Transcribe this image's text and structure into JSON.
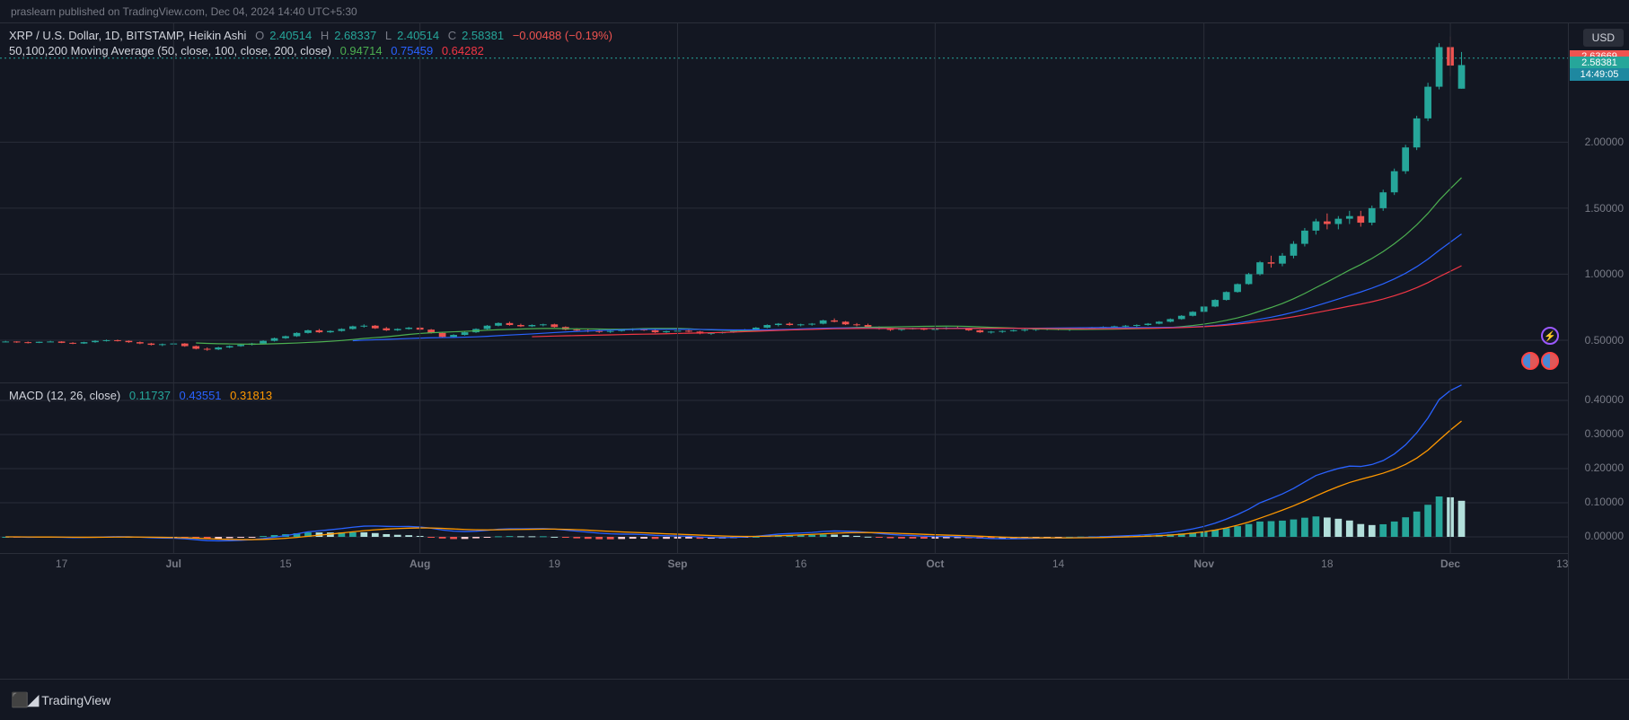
{
  "published_line": "praslearn published on TradingView.com, Dec 04, 2024 14:40 UTC+5:30",
  "footer_brand": "TradingView",
  "currency_button": "USD",
  "main_legend": {
    "symbol": "XRP / U.S. Dollar, 1D, BITSTAMP, Heikin Ashi",
    "o_label": "O",
    "o": "2.40514",
    "h_label": "H",
    "h": "2.68337",
    "l_label": "L",
    "l": "2.40514",
    "c_label": "C",
    "c": "2.58381",
    "change": "−0.00488 (−0.19%)",
    "ohlc_color": "#26a69a",
    "change_color": "#ef5350"
  },
  "ma_legend": {
    "name": "50,100,200 Moving Average (50, close, 100, close, 200, close)",
    "v1": "0.94714",
    "c1": "#4caf50",
    "v2": "0.75459",
    "c2": "#2962ff",
    "v3": "0.64282",
    "c3": "#f23645"
  },
  "macd_legend": {
    "name": "MACD (12, 26, close)",
    "v1": "0.11737",
    "c1": "#26a69a",
    "v2": "0.43551",
    "c2": "#2962ff",
    "v3": "0.31813",
    "c3": "#ff9800"
  },
  "price_axis": {
    "min": 0.18,
    "max": 2.9,
    "ticks": [
      {
        "v": 0.5,
        "label": "0.50000"
      },
      {
        "v": 1.0,
        "label": "1.00000"
      },
      {
        "v": 1.5,
        "label": "1.50000"
      },
      {
        "v": 2.0,
        "label": "2.00000"
      }
    ],
    "tags": [
      {
        "v": 2.63669,
        "label": "2.63669",
        "bg": "#ef5350",
        "fg": "#fff"
      },
      {
        "v": 2.58381,
        "label": "2.58381",
        "bg": "#26a69a",
        "fg": "#fff"
      },
      {
        "v": 2.5,
        "label": "14:49:05",
        "bg": "#1e88a0",
        "fg": "#fff"
      }
    ],
    "dashed_line_value": 2.63669,
    "dashed_color": "#26a69a"
  },
  "macd_axis": {
    "min": -0.05,
    "max": 0.45,
    "ticks": [
      {
        "v": 0.0,
        "label": "0.00000"
      },
      {
        "v": 0.1,
        "label": "0.10000"
      },
      {
        "v": 0.2,
        "label": "0.20000"
      },
      {
        "v": 0.3,
        "label": "0.30000"
      },
      {
        "v": 0.4,
        "label": "0.40000"
      }
    ]
  },
  "time_axis": {
    "n_bars": 140,
    "labels": [
      {
        "i": 5,
        "label": "17"
      },
      {
        "i": 15,
        "label": "Jul"
      },
      {
        "i": 25,
        "label": "15"
      },
      {
        "i": 37,
        "label": "Aug"
      },
      {
        "i": 49,
        "label": "19"
      },
      {
        "i": 60,
        "label": "Sep"
      },
      {
        "i": 71,
        "label": "16"
      },
      {
        "i": 83,
        "label": "Oct"
      },
      {
        "i": 94,
        "label": "14"
      },
      {
        "i": 107,
        "label": "Nov"
      },
      {
        "i": 118,
        "label": "18"
      },
      {
        "i": 129,
        "label": "Dec"
      },
      {
        "i": 139,
        "label": "13"
      }
    ]
  },
  "colors": {
    "up": "#26a69a",
    "down": "#ef5350",
    "ma50": "#4caf50",
    "ma100": "#2962ff",
    "ma200": "#f23645",
    "macd_line": "#2962ff",
    "signal_line": "#ff9800",
    "hist_pos_strong": "#26a69a",
    "hist_pos_weak": "#b2dfdb",
    "hist_neg_strong": "#ef5350",
    "hist_neg_weak": "#ffcdd2",
    "grid": "#2a2e39"
  },
  "candles": [
    {
      "o": 0.49,
      "h": 0.495,
      "l": 0.485,
      "c": 0.49,
      "d": 1
    },
    {
      "o": 0.49,
      "h": 0.492,
      "l": 0.48,
      "c": 0.485,
      "d": -1
    },
    {
      "o": 0.485,
      "h": 0.49,
      "l": 0.475,
      "c": 0.48,
      "d": -1
    },
    {
      "o": 0.48,
      "h": 0.49,
      "l": 0.478,
      "c": 0.488,
      "d": 1
    },
    {
      "o": 0.488,
      "h": 0.495,
      "l": 0.485,
      "c": 0.49,
      "d": 1
    },
    {
      "o": 0.49,
      "h": 0.492,
      "l": 0.478,
      "c": 0.48,
      "d": -1
    },
    {
      "o": 0.48,
      "h": 0.485,
      "l": 0.47,
      "c": 0.475,
      "d": -1
    },
    {
      "o": 0.475,
      "h": 0.488,
      "l": 0.472,
      "c": 0.485,
      "d": 1
    },
    {
      "o": 0.485,
      "h": 0.5,
      "l": 0.48,
      "c": 0.495,
      "d": 1
    },
    {
      "o": 0.495,
      "h": 0.505,
      "l": 0.49,
      "c": 0.5,
      "d": 1
    },
    {
      "o": 0.5,
      "h": 0.505,
      "l": 0.49,
      "c": 0.495,
      "d": -1
    },
    {
      "o": 0.495,
      "h": 0.498,
      "l": 0.48,
      "c": 0.485,
      "d": -1
    },
    {
      "o": 0.485,
      "h": 0.49,
      "l": 0.47,
      "c": 0.475,
      "d": -1
    },
    {
      "o": 0.475,
      "h": 0.48,
      "l": 0.46,
      "c": 0.465,
      "d": -1
    },
    {
      "o": 0.465,
      "h": 0.475,
      "l": 0.455,
      "c": 0.47,
      "d": 1
    },
    {
      "o": 0.47,
      "h": 0.48,
      "l": 0.465,
      "c": 0.475,
      "d": 1
    },
    {
      "o": 0.475,
      "h": 0.478,
      "l": 0.45,
      "c": 0.455,
      "d": -1
    },
    {
      "o": 0.455,
      "h": 0.46,
      "l": 0.43,
      "c": 0.435,
      "d": -1
    },
    {
      "o": 0.435,
      "h": 0.445,
      "l": 0.42,
      "c": 0.43,
      "d": -1
    },
    {
      "o": 0.43,
      "h": 0.45,
      "l": 0.425,
      "c": 0.445,
      "d": 1
    },
    {
      "o": 0.445,
      "h": 0.46,
      "l": 0.44,
      "c": 0.455,
      "d": 1
    },
    {
      "o": 0.455,
      "h": 0.47,
      "l": 0.45,
      "c": 0.465,
      "d": 1
    },
    {
      "o": 0.465,
      "h": 0.48,
      "l": 0.46,
      "c": 0.475,
      "d": 1
    },
    {
      "o": 0.475,
      "h": 0.5,
      "l": 0.47,
      "c": 0.495,
      "d": 1
    },
    {
      "o": 0.495,
      "h": 0.52,
      "l": 0.49,
      "c": 0.515,
      "d": 1
    },
    {
      "o": 0.515,
      "h": 0.535,
      "l": 0.51,
      "c": 0.53,
      "d": 1
    },
    {
      "o": 0.53,
      "h": 0.56,
      "l": 0.525,
      "c": 0.555,
      "d": 1
    },
    {
      "o": 0.555,
      "h": 0.58,
      "l": 0.55,
      "c": 0.575,
      "d": 1
    },
    {
      "o": 0.575,
      "h": 0.585,
      "l": 0.555,
      "c": 0.56,
      "d": -1
    },
    {
      "o": 0.56,
      "h": 0.575,
      "l": 0.555,
      "c": 0.57,
      "d": 1
    },
    {
      "o": 0.57,
      "h": 0.59,
      "l": 0.565,
      "c": 0.585,
      "d": 1
    },
    {
      "o": 0.585,
      "h": 0.61,
      "l": 0.58,
      "c": 0.605,
      "d": 1
    },
    {
      "o": 0.605,
      "h": 0.62,
      "l": 0.595,
      "c": 0.61,
      "d": 1
    },
    {
      "o": 0.61,
      "h": 0.615,
      "l": 0.585,
      "c": 0.59,
      "d": -1
    },
    {
      "o": 0.59,
      "h": 0.6,
      "l": 0.57,
      "c": 0.575,
      "d": -1
    },
    {
      "o": 0.575,
      "h": 0.59,
      "l": 0.57,
      "c": 0.585,
      "d": 1
    },
    {
      "o": 0.585,
      "h": 0.6,
      "l": 0.58,
      "c": 0.595,
      "d": 1
    },
    {
      "o": 0.595,
      "h": 0.605,
      "l": 0.575,
      "c": 0.58,
      "d": -1
    },
    {
      "o": 0.58,
      "h": 0.585,
      "l": 0.55,
      "c": 0.555,
      "d": -1
    },
    {
      "o": 0.555,
      "h": 0.56,
      "l": 0.52,
      "c": 0.525,
      "d": -1
    },
    {
      "o": 0.525,
      "h": 0.545,
      "l": 0.52,
      "c": 0.54,
      "d": 1
    },
    {
      "o": 0.54,
      "h": 0.565,
      "l": 0.535,
      "c": 0.56,
      "d": 1
    },
    {
      "o": 0.56,
      "h": 0.59,
      "l": 0.555,
      "c": 0.585,
      "d": 1
    },
    {
      "o": 0.585,
      "h": 0.615,
      "l": 0.58,
      "c": 0.61,
      "d": 1
    },
    {
      "o": 0.61,
      "h": 0.635,
      "l": 0.605,
      "c": 0.63,
      "d": 1
    },
    {
      "o": 0.63,
      "h": 0.64,
      "l": 0.61,
      "c": 0.615,
      "d": -1
    },
    {
      "o": 0.615,
      "h": 0.625,
      "l": 0.6,
      "c": 0.605,
      "d": -1
    },
    {
      "o": 0.605,
      "h": 0.62,
      "l": 0.6,
      "c": 0.615,
      "d": 1
    },
    {
      "o": 0.615,
      "h": 0.625,
      "l": 0.605,
      "c": 0.62,
      "d": 1
    },
    {
      "o": 0.62,
      "h": 0.625,
      "l": 0.595,
      "c": 0.6,
      "d": -1
    },
    {
      "o": 0.6,
      "h": 0.605,
      "l": 0.575,
      "c": 0.58,
      "d": -1
    },
    {
      "o": 0.58,
      "h": 0.59,
      "l": 0.565,
      "c": 0.575,
      "d": -1
    },
    {
      "o": 0.575,
      "h": 0.585,
      "l": 0.56,
      "c": 0.57,
      "d": -1
    },
    {
      "o": 0.57,
      "h": 0.58,
      "l": 0.555,
      "c": 0.565,
      "d": -1
    },
    {
      "o": 0.565,
      "h": 0.575,
      "l": 0.555,
      "c": 0.57,
      "d": 1
    },
    {
      "o": 0.57,
      "h": 0.585,
      "l": 0.565,
      "c": 0.58,
      "d": 1
    },
    {
      "o": 0.58,
      "h": 0.59,
      "l": 0.57,
      "c": 0.585,
      "d": 1
    },
    {
      "o": 0.585,
      "h": 0.59,
      "l": 0.57,
      "c": 0.575,
      "d": -1
    },
    {
      "o": 0.575,
      "h": 0.58,
      "l": 0.555,
      "c": 0.56,
      "d": -1
    },
    {
      "o": 0.56,
      "h": 0.572,
      "l": 0.555,
      "c": 0.568,
      "d": 1
    },
    {
      "o": 0.568,
      "h": 0.578,
      "l": 0.56,
      "c": 0.572,
      "d": 1
    },
    {
      "o": 0.572,
      "h": 0.578,
      "l": 0.56,
      "c": 0.565,
      "d": -1
    },
    {
      "o": 0.565,
      "h": 0.57,
      "l": 0.545,
      "c": 0.55,
      "d": -1
    },
    {
      "o": 0.55,
      "h": 0.56,
      "l": 0.54,
      "c": 0.555,
      "d": 1
    },
    {
      "o": 0.555,
      "h": 0.565,
      "l": 0.55,
      "c": 0.56,
      "d": 1
    },
    {
      "o": 0.56,
      "h": 0.575,
      "l": 0.555,
      "c": 0.57,
      "d": 1
    },
    {
      "o": 0.57,
      "h": 0.585,
      "l": 0.565,
      "c": 0.58,
      "d": 1
    },
    {
      "o": 0.58,
      "h": 0.6,
      "l": 0.575,
      "c": 0.595,
      "d": 1
    },
    {
      "o": 0.595,
      "h": 0.62,
      "l": 0.59,
      "c": 0.615,
      "d": 1
    },
    {
      "o": 0.615,
      "h": 0.63,
      "l": 0.605,
      "c": 0.625,
      "d": 1
    },
    {
      "o": 0.625,
      "h": 0.635,
      "l": 0.61,
      "c": 0.615,
      "d": -1
    },
    {
      "o": 0.615,
      "h": 0.625,
      "l": 0.605,
      "c": 0.62,
      "d": 1
    },
    {
      "o": 0.62,
      "h": 0.63,
      "l": 0.61,
      "c": 0.625,
      "d": 1
    },
    {
      "o": 0.625,
      "h": 0.655,
      "l": 0.62,
      "c": 0.65,
      "d": 1
    },
    {
      "o": 0.65,
      "h": 0.665,
      "l": 0.635,
      "c": 0.64,
      "d": -1
    },
    {
      "o": 0.64,
      "h": 0.645,
      "l": 0.615,
      "c": 0.62,
      "d": -1
    },
    {
      "o": 0.62,
      "h": 0.63,
      "l": 0.605,
      "c": 0.615,
      "d": -1
    },
    {
      "o": 0.615,
      "h": 0.625,
      "l": 0.595,
      "c": 0.6,
      "d": -1
    },
    {
      "o": 0.6,
      "h": 0.605,
      "l": 0.58,
      "c": 0.585,
      "d": -1
    },
    {
      "o": 0.585,
      "h": 0.595,
      "l": 0.57,
      "c": 0.58,
      "d": -1
    },
    {
      "o": 0.58,
      "h": 0.59,
      "l": 0.57,
      "c": 0.585,
      "d": 1
    },
    {
      "o": 0.585,
      "h": 0.595,
      "l": 0.58,
      "c": 0.59,
      "d": 1
    },
    {
      "o": 0.59,
      "h": 0.595,
      "l": 0.575,
      "c": 0.58,
      "d": -1
    },
    {
      "o": 0.58,
      "h": 0.59,
      "l": 0.57,
      "c": 0.585,
      "d": 1
    },
    {
      "o": 0.585,
      "h": 0.6,
      "l": 0.58,
      "c": 0.595,
      "d": 1
    },
    {
      "o": 0.595,
      "h": 0.605,
      "l": 0.585,
      "c": 0.59,
      "d": -1
    },
    {
      "o": 0.59,
      "h": 0.595,
      "l": 0.57,
      "c": 0.575,
      "d": -1
    },
    {
      "o": 0.575,
      "h": 0.58,
      "l": 0.555,
      "c": 0.56,
      "d": -1
    },
    {
      "o": 0.56,
      "h": 0.57,
      "l": 0.55,
      "c": 0.565,
      "d": 1
    },
    {
      "o": 0.565,
      "h": 0.575,
      "l": 0.555,
      "c": 0.57,
      "d": 1
    },
    {
      "o": 0.57,
      "h": 0.58,
      "l": 0.565,
      "c": 0.575,
      "d": 1
    },
    {
      "o": 0.575,
      "h": 0.585,
      "l": 0.565,
      "c": 0.58,
      "d": 1
    },
    {
      "o": 0.58,
      "h": 0.59,
      "l": 0.57,
      "c": 0.585,
      "d": 1
    },
    {
      "o": 0.585,
      "h": 0.595,
      "l": 0.575,
      "c": 0.59,
      "d": 1
    },
    {
      "o": 0.59,
      "h": 0.595,
      "l": 0.575,
      "c": 0.58,
      "d": -1
    },
    {
      "o": 0.58,
      "h": 0.59,
      "l": 0.57,
      "c": 0.585,
      "d": 1
    },
    {
      "o": 0.585,
      "h": 0.595,
      "l": 0.58,
      "c": 0.59,
      "d": 1
    },
    {
      "o": 0.59,
      "h": 0.6,
      "l": 0.585,
      "c": 0.595,
      "d": 1
    },
    {
      "o": 0.595,
      "h": 0.605,
      "l": 0.59,
      "c": 0.6,
      "d": 1
    },
    {
      "o": 0.6,
      "h": 0.61,
      "l": 0.595,
      "c": 0.605,
      "d": 1
    },
    {
      "o": 0.605,
      "h": 0.615,
      "l": 0.595,
      "c": 0.61,
      "d": 1
    },
    {
      "o": 0.61,
      "h": 0.62,
      "l": 0.6,
      "c": 0.615,
      "d": 1
    },
    {
      "o": 0.615,
      "h": 0.63,
      "l": 0.61,
      "c": 0.625,
      "d": 1
    },
    {
      "o": 0.625,
      "h": 0.645,
      "l": 0.62,
      "c": 0.64,
      "d": 1
    },
    {
      "o": 0.64,
      "h": 0.665,
      "l": 0.635,
      "c": 0.66,
      "d": 1
    },
    {
      "o": 0.66,
      "h": 0.69,
      "l": 0.655,
      "c": 0.685,
      "d": 1
    },
    {
      "o": 0.685,
      "h": 0.72,
      "l": 0.68,
      "c": 0.715,
      "d": 1
    },
    {
      "o": 0.715,
      "h": 0.76,
      "l": 0.71,
      "c": 0.755,
      "d": 1
    },
    {
      "o": 0.755,
      "h": 0.81,
      "l": 0.75,
      "c": 0.805,
      "d": 1
    },
    {
      "o": 0.805,
      "h": 0.87,
      "l": 0.8,
      "c": 0.865,
      "d": 1
    },
    {
      "o": 0.865,
      "h": 0.93,
      "l": 0.86,
      "c": 0.925,
      "d": 1
    },
    {
      "o": 0.925,
      "h": 1.01,
      "l": 0.92,
      "c": 1.0,
      "d": 1
    },
    {
      "o": 1.0,
      "h": 1.1,
      "l": 0.99,
      "c": 1.09,
      "d": 1
    },
    {
      "o": 1.09,
      "h": 1.14,
      "l": 1.05,
      "c": 1.08,
      "d": -1
    },
    {
      "o": 1.08,
      "h": 1.16,
      "l": 1.06,
      "c": 1.14,
      "d": 1
    },
    {
      "o": 1.14,
      "h": 1.25,
      "l": 1.12,
      "c": 1.23,
      "d": 1
    },
    {
      "o": 1.23,
      "h": 1.35,
      "l": 1.21,
      "c": 1.33,
      "d": 1
    },
    {
      "o": 1.33,
      "h": 1.42,
      "l": 1.3,
      "c": 1.4,
      "d": 1
    },
    {
      "o": 1.4,
      "h": 1.46,
      "l": 1.34,
      "c": 1.38,
      "d": -1
    },
    {
      "o": 1.38,
      "h": 1.44,
      "l": 1.34,
      "c": 1.42,
      "d": 1
    },
    {
      "o": 1.42,
      "h": 1.48,
      "l": 1.38,
      "c": 1.44,
      "d": 1
    },
    {
      "o": 1.44,
      "h": 1.48,
      "l": 1.36,
      "c": 1.39,
      "d": -1
    },
    {
      "o": 1.39,
      "h": 1.52,
      "l": 1.37,
      "c": 1.5,
      "d": 1
    },
    {
      "o": 1.5,
      "h": 1.64,
      "l": 1.48,
      "c": 1.62,
      "d": 1
    },
    {
      "o": 1.62,
      "h": 1.8,
      "l": 1.6,
      "c": 1.78,
      "d": 1
    },
    {
      "o": 1.78,
      "h": 1.98,
      "l": 1.76,
      "c": 1.96,
      "d": 1
    },
    {
      "o": 1.96,
      "h": 2.2,
      "l": 1.94,
      "c": 2.18,
      "d": 1
    },
    {
      "o": 2.18,
      "h": 2.45,
      "l": 2.16,
      "c": 2.42,
      "d": 1
    },
    {
      "o": 2.42,
      "h": 2.75,
      "l": 2.4,
      "c": 2.72,
      "d": 1
    },
    {
      "o": 2.72,
      "h": 2.8,
      "l": 2.5,
      "c": 2.58,
      "d": -1
    },
    {
      "o": 2.405,
      "h": 2.683,
      "l": 2.405,
      "c": 2.584,
      "d": 1
    }
  ]
}
